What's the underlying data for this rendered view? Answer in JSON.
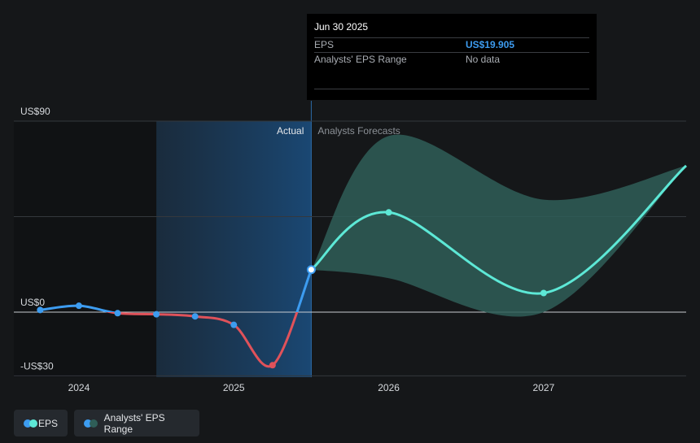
{
  "tooltip": {
    "date": "Jun 30 2025",
    "rows": [
      {
        "label": "EPS",
        "value": "US$19.905"
      },
      {
        "label": "Analysts' EPS Range",
        "value": "No data"
      }
    ]
  },
  "legend": [
    {
      "label": "EPS",
      "colors": [
        "#3d9cf0",
        "#5de8d6"
      ]
    },
    {
      "label": "Analysts' EPS Range",
      "colors": [
        "#3d9cf0",
        "#2f5e58"
      ]
    }
  ],
  "colors": {
    "actual_positive": "#3d9cf0",
    "actual_negative": "#e0525a",
    "forecast": "#5de8d6",
    "range_fill": "#2f5e58"
  },
  "chart_data": {
    "type": "line",
    "y_ticks": [
      {
        "value": 90,
        "label": "US$90"
      },
      {
        "value": 0,
        "label": "US$0"
      },
      {
        "value": -30,
        "label": "-US$30"
      }
    ],
    "x_ticks": [
      {
        "value": 2024.0,
        "label": "2024"
      },
      {
        "value": 2025.0,
        "label": "2025"
      },
      {
        "value": 2026.0,
        "label": "2026"
      },
      {
        "value": 2027.0,
        "label": "2027"
      }
    ],
    "ylim": [
      -30,
      90
    ],
    "xlim": [
      2023.58,
      2027.92
    ],
    "divider_x": 2025.5,
    "highlight_start_x": 2024.5,
    "section_labels": {
      "actual": "Actual",
      "forecast": "Analysts Forecasts"
    },
    "series": [
      {
        "name": "EPS",
        "kind": "actual",
        "x": [
          2023.75,
          2024.0,
          2024.25,
          2024.5,
          2024.75,
          2025.0,
          2025.25,
          2025.5
        ],
        "values": [
          1,
          3,
          -0.5,
          -1,
          -2,
          -6,
          -25,
          20
        ]
      },
      {
        "name": "EPS",
        "kind": "forecast",
        "x": [
          2025.5,
          2026.0,
          2027.0,
          2027.92
        ],
        "values": [
          20,
          47,
          9,
          69
        ]
      },
      {
        "name": "Analysts' EPS Range",
        "kind": "range",
        "x": [
          2025.5,
          2026.0,
          2027.0,
          2027.92
        ],
        "upper": [
          20,
          83,
          53,
          69
        ],
        "lower": [
          20,
          16,
          0,
          69
        ]
      }
    ]
  }
}
